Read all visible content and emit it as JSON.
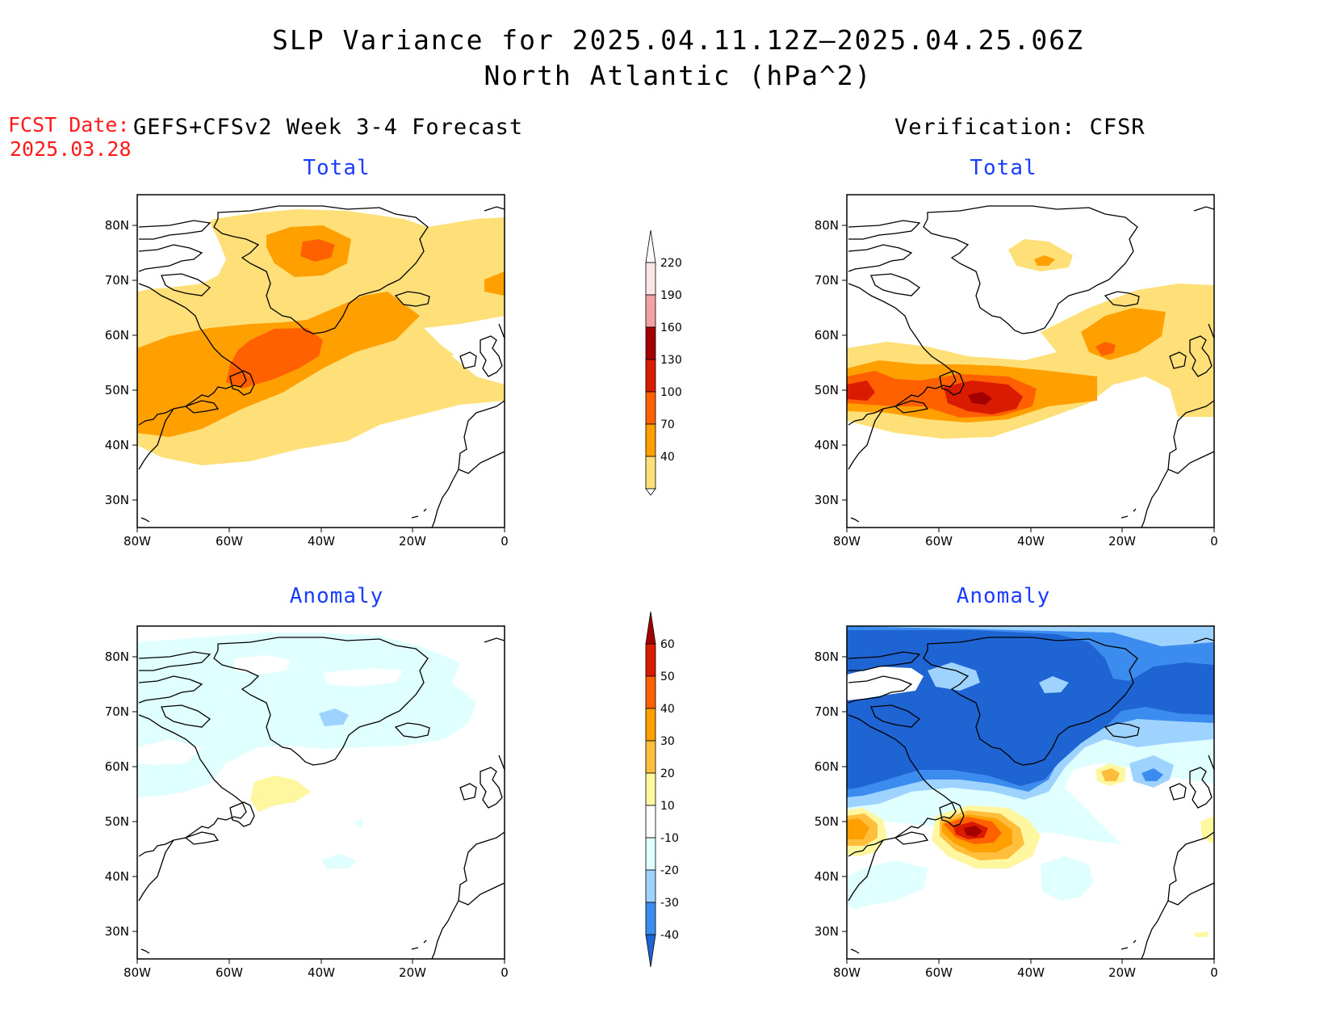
{
  "title": {
    "line1": "SLP Variance for 2025.04.11.12Z–2025.04.25.06Z",
    "line2": "North Atlantic (hPa^2)"
  },
  "fcst_date": {
    "label": "FCST Date:",
    "value": "2025.03.28"
  },
  "column_titles": {
    "left": "GEFS+CFSv2 Week 3-4 Forecast",
    "right": "Verification: CFSR"
  },
  "panels": {
    "forecast_total": {
      "title": "Total"
    },
    "forecast_anomaly": {
      "title": "Anomaly"
    },
    "verification_total": {
      "title": "Total"
    },
    "verification_anomaly": {
      "title": "Anomaly"
    }
  },
  "axes": {
    "lat_labels": [
      "80N",
      "70N",
      "60N",
      "50N",
      "40N",
      "30N"
    ],
    "lon_labels": [
      "80W",
      "60W",
      "40W",
      "20W",
      "0"
    ]
  },
  "colorbars": {
    "total": {
      "labels": [
        "220",
        "190",
        "160",
        "130",
        "100",
        "70",
        "40"
      ],
      "colors": [
        "#fbe6e6",
        "#f3a2a2",
        "#a50000",
        "#d91c00",
        "#ff6100",
        "#ffa000",
        "#ffe078"
      ]
    },
    "anomaly": {
      "labels": [
        "60",
        "50",
        "40",
        "30",
        "20",
        "10",
        "-10",
        "-20",
        "-30",
        "-40"
      ],
      "colors": [
        "#a50000",
        "#d91c00",
        "#ff6100",
        "#ffa000",
        "#ffbe3c",
        "#fff7a0",
        "#ffffff",
        "#e0ffff",
        "#9fd3ff",
        "#3c8cf0",
        "#1e64d2"
      ]
    }
  },
  "map_colors": {
    "yellow": "#ffe078",
    "orange": "#ffa000",
    "dark_orange": "#ff6100",
    "red": "#d91c00",
    "dark_red": "#a50000",
    "light_yellow": "#fff7a0",
    "light_orange": "#ffbe3c",
    "light_cyan": "#e0ffff",
    "light_blue": "#9fd3ff",
    "medium_blue": "#3c8cf0",
    "dark_blue": "#1e64d2"
  }
}
